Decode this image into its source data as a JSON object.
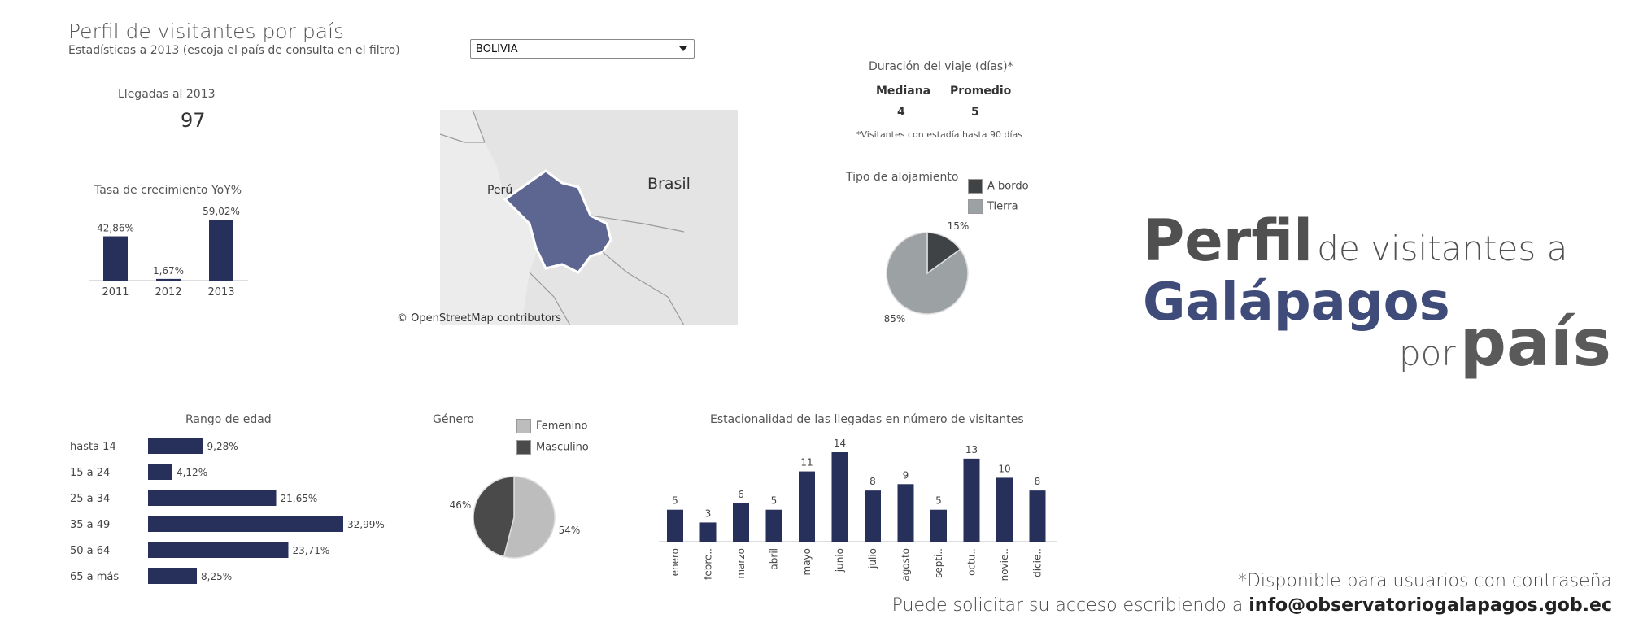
{
  "header": {
    "title": "Perfil de visitantes por país",
    "subtitle": "Estadísticas a 2013 (escoja el país de consulta en el filtro)"
  },
  "filter": {
    "selected": "BOLIVIA"
  },
  "arrivals": {
    "label": "Llegadas al 2013",
    "value": "97"
  },
  "trip_duration": {
    "title": "Duración del viaje (días)*",
    "median_label": "Mediana",
    "median_value": "4",
    "mean_label": "Promedio",
    "mean_value": "5",
    "note": "*Visitantes con estadía hasta 90 días"
  },
  "map": {
    "labels": [
      "Perú",
      "Brasil"
    ],
    "credit": "© OpenStreetMap contributors",
    "highlight_color": "#5c6690"
  },
  "colors": {
    "bar": "#26305a",
    "dark": "#4a4a4a",
    "light": "#bdbdbd",
    "grey": "#9aa0a4",
    "dark2": "#3f4346"
  },
  "promo": {
    "line1_big": "Perfil",
    "line1_small": "de visitantes a",
    "line2": "Galápagos",
    "line3_small": "por",
    "line3_big": "país"
  },
  "footer": {
    "line1": "*Disponible para usuarios con contraseña",
    "line2_prefix": "Puede solicitar su acceso escribiendo a ",
    "email": "info@observatoriogalapagos.gob.ec"
  },
  "chart_data": [
    {
      "type": "bar",
      "title": "Tasa de crecimiento YoY%",
      "categories": [
        "2011",
        "2012",
        "2013"
      ],
      "values": [
        42.86,
        1.67,
        59.02
      ],
      "labels": [
        "42,86%",
        "1,67%",
        "59,02%"
      ]
    },
    {
      "type": "pie",
      "title": "Tipo de alojamiento",
      "categories": [
        "A bordo",
        "Tierra"
      ],
      "values": [
        15,
        85
      ],
      "labels": [
        "15%",
        "85%"
      ],
      "colors": [
        "#3f4346",
        "#9ca1a4"
      ]
    },
    {
      "type": "bar",
      "orientation": "horizontal",
      "title": "Rango de edad",
      "categories": [
        "hasta 14",
        "15 a 24",
        "25 a 34",
        "35 a 49",
        "50 a 64",
        "65 a más"
      ],
      "values": [
        9.28,
        4.12,
        21.65,
        32.99,
        23.71,
        8.25
      ],
      "labels": [
        "9,28%",
        "4,12%",
        "21,65%",
        "32,99%",
        "23,71%",
        "8,25%"
      ]
    },
    {
      "type": "pie",
      "title": "Género",
      "categories": [
        "Femenino",
        "Masculino"
      ],
      "values": [
        54,
        46
      ],
      "labels": [
        "54%",
        "46%"
      ],
      "colors": [
        "#bdbdbd",
        "#4a4a4a"
      ]
    },
    {
      "type": "bar",
      "title": "Estacionalidad de las llegadas en número de visitantes",
      "categories": [
        "enero",
        "febre..",
        "marzo",
        "abril",
        "mayo",
        "junio",
        "julio",
        "agosto",
        "septi..",
        "octu..",
        "novie..",
        "dicie.."
      ],
      "values": [
        5,
        3,
        6,
        5,
        11,
        14,
        8,
        9,
        5,
        13,
        10,
        8
      ],
      "labels": [
        "5",
        "3",
        "6",
        "5",
        "11",
        "14",
        "8",
        "9",
        "5",
        "13",
        "10",
        "8"
      ]
    }
  ]
}
